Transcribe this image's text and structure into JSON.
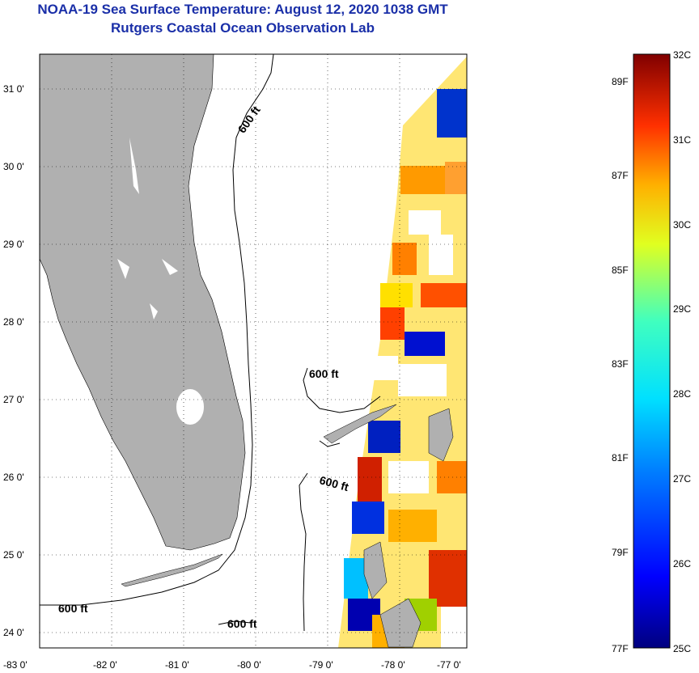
{
  "title": "NOAA-19 Sea Surface Temperature:  August 12, 2020 1038 GMT",
  "subtitle": "Rutgers Coastal Ocean Observation Lab",
  "map": {
    "lat_labels": [
      "31 0'",
      "30 0'",
      "29 0'",
      "28 0'",
      "27 0'",
      "26 0'",
      "25 0'",
      "24 0'"
    ],
    "lon_labels": [
      "-83 0'",
      "-82 0'",
      "-81 0'",
      "-80 0'",
      "-79 0'",
      "-78 0'",
      "-77 0'"
    ],
    "contour_labels": [
      "600 ft",
      "600 ft",
      "600 ft",
      "600 ft",
      "600 ft"
    ],
    "land_color": "#b0b0b0"
  },
  "colorbar": {
    "celsius_labels": [
      "32C",
      "31C",
      "30C",
      "29C",
      "28C",
      "27C",
      "26C",
      "25C"
    ],
    "fahrenheit_labels": [
      "89F",
      "87F",
      "85F",
      "83F",
      "81F",
      "79F",
      "77F"
    ]
  }
}
